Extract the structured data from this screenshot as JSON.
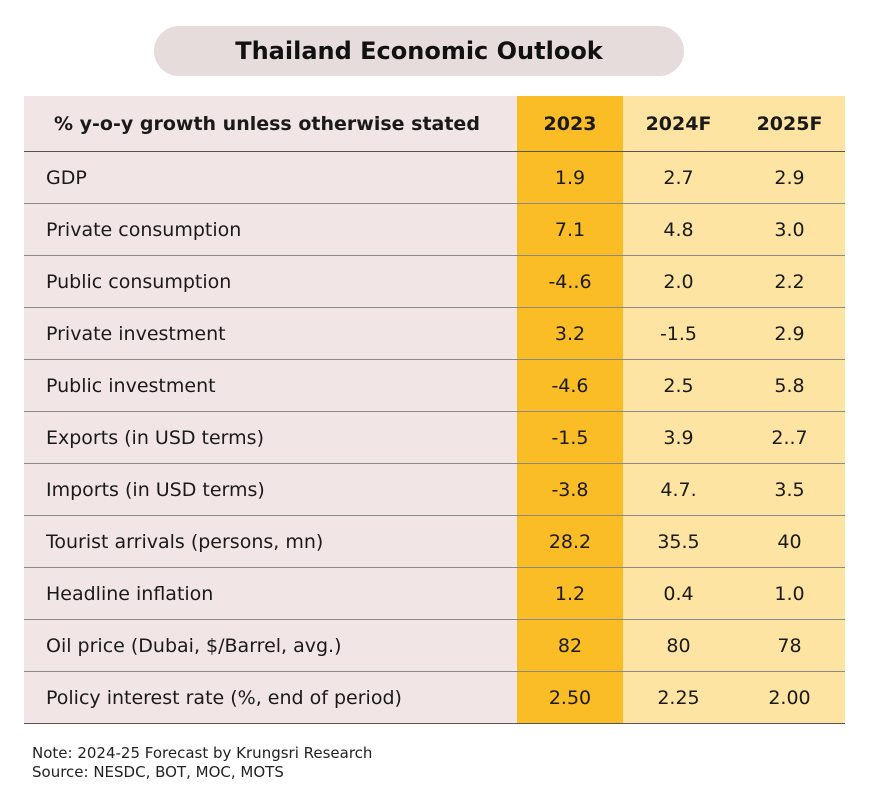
{
  "title": "Thailand Economic Outlook",
  "chart_data": {
    "type": "table",
    "header": [
      "% y-o-y  growth unless otherwise stated",
      "2023",
      "2024F",
      "2025F"
    ],
    "rows": [
      [
        "GDP",
        "1.9",
        "2.7",
        "2.9"
      ],
      [
        "Private consumption",
        "7.1",
        "4.8",
        "3.0"
      ],
      [
        "Public consumption",
        "-4..6",
        "2.0",
        "2.2"
      ],
      [
        "Private investment",
        "3.2",
        "-1.5",
        "2.9"
      ],
      [
        "Public investment",
        "-4.6",
        "2.5",
        "5.8"
      ],
      [
        "Exports (in USD terms)",
        "-1.5",
        "3.9",
        "2..7"
      ],
      [
        "Imports (in USD terms)",
        "-3.8",
        "4.7.",
        "3.5"
      ],
      [
        "Tourist arrivals (persons, mn)",
        "28.2",
        "35.5",
        "40"
      ],
      [
        "Headline inflation",
        "1.2",
        "0.4",
        "1.0"
      ],
      [
        "Oil price (Dubai, $/Barrel, avg.)",
        "82",
        "80",
        "78"
      ],
      [
        "Policy interest rate (%, end of period)",
        "2.50",
        "2.25",
        "2.00"
      ]
    ]
  },
  "footer": {
    "note": "Note: 2024-25 Forecast by Krungsri Research",
    "source": "Source: NESDC, BOT, MOC, MOTS"
  },
  "colors": {
    "title_bg": "#e6dcdc",
    "label_bg": "#f1e5e5",
    "highlight_2023": "#fbbd26",
    "forecast_bg": "#fde4a2"
  }
}
